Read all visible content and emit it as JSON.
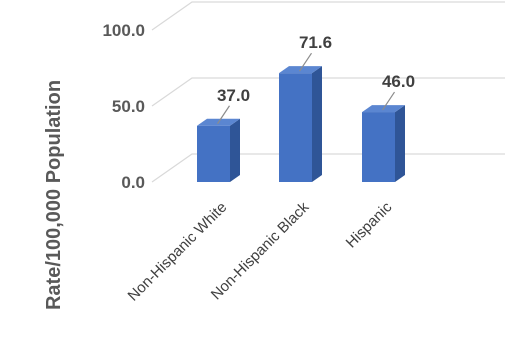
{
  "chart_data": {
    "type": "bar",
    "categories": [
      "Non-Hispanic White",
      "Non-Hispanic Black",
      "Hispanic"
    ],
    "values": [
      37.0,
      71.6,
      46.0
    ],
    "value_labels": [
      "37.0",
      "71.6",
      "46.0"
    ],
    "yticks": [
      {
        "value": 0,
        "label": "0.0"
      },
      {
        "value": 50,
        "label": "50.0"
      },
      {
        "value": 100,
        "label": "100.0"
      }
    ],
    "ylabel": "Rate/100,000 Population",
    "ylim": [
      0,
      100
    ],
    "grid": true,
    "style": "3d-column",
    "colors": {
      "bar_front": "#4472C4",
      "bar_side": "#2F5597",
      "bar_top": "#5B86D1",
      "grid": "#D9D9D9",
      "text": "#595959"
    }
  }
}
